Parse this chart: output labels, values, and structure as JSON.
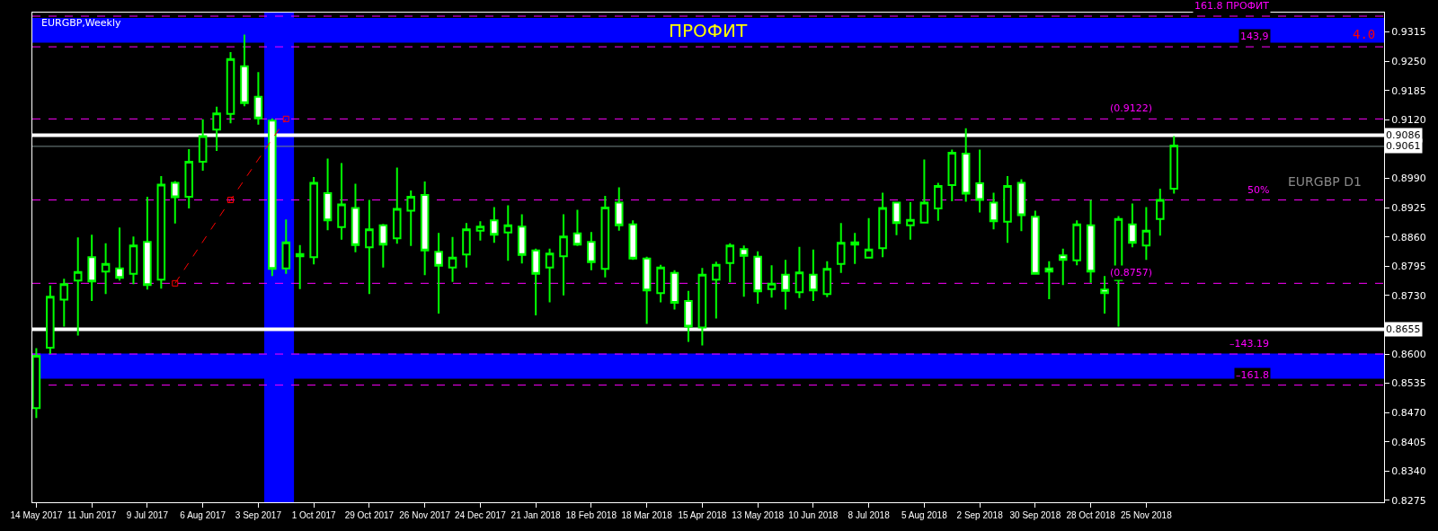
{
  "chart_data": {
    "type": "candlestick",
    "title": "EURGBP,Weekly",
    "x": [
      "2017-05-14",
      "2017-05-21",
      "2017-05-28",
      "2017-06-04",
      "2017-06-11",
      "2017-06-18",
      "2017-06-25",
      "2017-07-02",
      "2017-07-09",
      "2017-07-16",
      "2017-07-23",
      "2017-07-30",
      "2017-08-06",
      "2017-08-13",
      "2017-08-20",
      "2017-08-27",
      "2017-09-03",
      "2017-09-10",
      "2017-09-17",
      "2017-09-24",
      "2017-10-01",
      "2017-10-08",
      "2017-10-15",
      "2017-10-22",
      "2017-10-29",
      "2017-11-05",
      "2017-11-12",
      "2017-11-19",
      "2017-11-26",
      "2017-12-03",
      "2017-12-10",
      "2017-12-17",
      "2017-12-24",
      "2017-12-31",
      "2018-01-07",
      "2018-01-14",
      "2018-01-21",
      "2018-01-28",
      "2018-02-04",
      "2018-02-11",
      "2018-02-18",
      "2018-02-25",
      "2018-03-04",
      "2018-03-11",
      "2018-03-18",
      "2018-03-25",
      "2018-04-01",
      "2018-04-08",
      "2018-04-15",
      "2018-04-22",
      "2018-04-29",
      "2018-05-06",
      "2018-05-13",
      "2018-05-20",
      "2018-05-27",
      "2018-06-03",
      "2018-06-10",
      "2018-06-17",
      "2018-06-24",
      "2018-07-01",
      "2018-07-08",
      "2018-07-15",
      "2018-07-22",
      "2018-07-29",
      "2018-08-05",
      "2018-08-12",
      "2018-08-19",
      "2018-08-26",
      "2018-09-02",
      "2018-09-09",
      "2018-09-16",
      "2018-09-23",
      "2018-09-30",
      "2018-10-07",
      "2018-10-14",
      "2018-10-21",
      "2018-10-28",
      "2018-11-04",
      "2018-11-11",
      "2018-11-18",
      "2018-11-25",
      "2018-12-02",
      "2018-12-09"
    ],
    "series": [
      {
        "type": "candlestick",
        "color": "#00ff00",
        "ohlc": [
          [
            0.848,
            0.8613,
            0.8458,
            0.8596
          ],
          [
            0.8614,
            0.8752,
            0.86,
            0.8727
          ],
          [
            0.8721,
            0.8767,
            0.8661,
            0.8755
          ],
          [
            0.8763,
            0.8859,
            0.8641,
            0.8782
          ],
          [
            0.8815,
            0.8865,
            0.8718,
            0.8761
          ],
          [
            0.8783,
            0.8846,
            0.8733,
            0.88
          ],
          [
            0.879,
            0.8881,
            0.8763,
            0.8769
          ],
          [
            0.8778,
            0.8861,
            0.8755,
            0.8841
          ],
          [
            0.8849,
            0.8949,
            0.8743,
            0.8753
          ],
          [
            0.8765,
            0.8995,
            0.8745,
            0.8976
          ],
          [
            0.898,
            0.8984,
            0.889,
            0.8948
          ],
          [
            0.8949,
            0.9055,
            0.8923,
            0.9027
          ],
          [
            0.9027,
            0.9121,
            0.9007,
            0.9084
          ],
          [
            0.9098,
            0.9149,
            0.9051,
            0.9134
          ],
          [
            0.9133,
            0.927,
            0.9112,
            0.9255
          ],
          [
            0.9239,
            0.9309,
            0.915,
            0.9157
          ],
          [
            0.9171,
            0.9226,
            0.9109,
            0.9123
          ],
          [
            0.9118,
            0.9123,
            0.8773,
            0.8789
          ],
          [
            0.879,
            0.8899,
            0.8778,
            0.8848
          ],
          [
            0.8822,
            0.8842,
            0.8744,
            0.8817
          ],
          [
            0.8815,
            0.8993,
            0.8799,
            0.898
          ],
          [
            0.8957,
            0.9034,
            0.8875,
            0.8897
          ],
          [
            0.8882,
            0.9024,
            0.8854,
            0.8932
          ],
          [
            0.8924,
            0.8978,
            0.8826,
            0.8842
          ],
          [
            0.8837,
            0.8942,
            0.8733,
            0.8877
          ],
          [
            0.8886,
            0.8889,
            0.8792,
            0.8843
          ],
          [
            0.8857,
            0.9014,
            0.8845,
            0.8922
          ],
          [
            0.8918,
            0.8963,
            0.884,
            0.8949
          ],
          [
            0.8953,
            0.8983,
            0.8775,
            0.883
          ],
          [
            0.8827,
            0.8869,
            0.869,
            0.8796
          ],
          [
            0.8792,
            0.886,
            0.876,
            0.8814
          ],
          [
            0.8821,
            0.8891,
            0.8792,
            0.8877
          ],
          [
            0.8874,
            0.8895,
            0.8852,
            0.8883
          ],
          [
            0.8897,
            0.8926,
            0.8847,
            0.8865
          ],
          [
            0.887,
            0.893,
            0.8807,
            0.8886
          ],
          [
            0.8883,
            0.891,
            0.8801,
            0.882
          ],
          [
            0.883,
            0.8834,
            0.8686,
            0.8778
          ],
          [
            0.8792,
            0.8834,
            0.8715,
            0.8823
          ],
          [
            0.8817,
            0.891,
            0.873,
            0.8861
          ],
          [
            0.8868,
            0.892,
            0.884,
            0.8843
          ],
          [
            0.8849,
            0.8871,
            0.8786,
            0.8804
          ],
          [
            0.8789,
            0.8951,
            0.877,
            0.8925
          ],
          [
            0.8936,
            0.897,
            0.8874,
            0.8886
          ],
          [
            0.8888,
            0.8897,
            0.8809,
            0.8812
          ],
          [
            0.8812,
            0.8816,
            0.8667,
            0.8741
          ],
          [
            0.8735,
            0.8798,
            0.8715,
            0.8792
          ],
          [
            0.878,
            0.8786,
            0.8699,
            0.8714
          ],
          [
            0.8718,
            0.874,
            0.8627,
            0.8661
          ],
          [
            0.8659,
            0.8791,
            0.8619,
            0.8776
          ],
          [
            0.8765,
            0.8805,
            0.8679,
            0.8798
          ],
          [
            0.8802,
            0.8846,
            0.8759,
            0.8841
          ],
          [
            0.8833,
            0.8841,
            0.8727,
            0.8818
          ],
          [
            0.8816,
            0.8828,
            0.8712,
            0.8739
          ],
          [
            0.8744,
            0.8797,
            0.8725,
            0.8756
          ],
          [
            0.8776,
            0.8809,
            0.8699,
            0.874
          ],
          [
            0.8737,
            0.8838,
            0.8724,
            0.8781
          ],
          [
            0.8776,
            0.8832,
            0.8718,
            0.8741
          ],
          [
            0.8733,
            0.8806,
            0.8726,
            0.8789
          ],
          [
            0.88,
            0.8891,
            0.878,
            0.8847
          ],
          [
            0.8848,
            0.8869,
            0.88,
            0.8843
          ],
          [
            0.8814,
            0.8902,
            0.8812,
            0.8832
          ],
          [
            0.8835,
            0.8958,
            0.8815,
            0.8924
          ],
          [
            0.8936,
            0.8937,
            0.8864,
            0.8891
          ],
          [
            0.8886,
            0.8937,
            0.8854,
            0.8898
          ],
          [
            0.8892,
            0.9032,
            0.8891,
            0.8936
          ],
          [
            0.8923,
            0.898,
            0.8896,
            0.8973
          ],
          [
            0.8975,
            0.9054,
            0.8939,
            0.9047
          ],
          [
            0.9045,
            0.9101,
            0.8938,
            0.8956
          ],
          [
            0.8979,
            0.9054,
            0.8914,
            0.8942
          ],
          [
            0.8936,
            0.8958,
            0.8877,
            0.8895
          ],
          [
            0.8894,
            0.8995,
            0.8847,
            0.8973
          ],
          [
            0.898,
            0.8988,
            0.8873,
            0.8908
          ],
          [
            0.8905,
            0.8918,
            0.8776,
            0.8778
          ],
          [
            0.879,
            0.8806,
            0.8722,
            0.8783
          ],
          [
            0.8819,
            0.8834,
            0.8753,
            0.8809
          ],
          [
            0.8808,
            0.8897,
            0.8797,
            0.8888
          ],
          [
            0.8886,
            0.8942,
            0.8758,
            0.8783
          ],
          [
            0.8743,
            0.8773,
            0.869,
            0.8735
          ],
          [
            0.8764,
            0.8906,
            0.8661,
            0.89
          ],
          [
            0.8888,
            0.8934,
            0.8837,
            0.8847
          ],
          [
            0.8841,
            0.8926,
            0.8809,
            0.8874
          ],
          [
            0.89,
            0.8967,
            0.8863,
            0.8942
          ],
          [
            0.8967,
            0.9084,
            0.8956,
            0.9063
          ]
        ]
      },
      {
        "type": "line",
        "color": "#ff0000",
        "line_style": "dashed",
        "marker": "square",
        "x": [
          "2017-07-23",
          "2017-08-20",
          "2017-09-17"
        ],
        "values": [
          0.8757,
          0.8942,
          0.9122
        ]
      }
    ],
    "xlim": [
      "2017-05-12",
      "2019-03-25"
    ],
    "xticks": [
      {
        "value": "2017-05-14",
        "label": "14 May 2017"
      },
      {
        "value": "2017-06-11",
        "label": "11 Jun 2017"
      },
      {
        "value": "2017-07-09",
        "label": "9 Jul 2017"
      },
      {
        "value": "2017-08-06",
        "label": "6 Aug 2017"
      },
      {
        "value": "2017-09-03",
        "label": "3 Sep 2017"
      },
      {
        "value": "2017-10-01",
        "label": "1 Oct 2017"
      },
      {
        "value": "2017-10-29",
        "label": "29 Oct 2017"
      },
      {
        "value": "2017-11-26",
        "label": "26 Nov 2017"
      },
      {
        "value": "2017-12-24",
        "label": "24 Dec 2017"
      },
      {
        "value": "2018-01-21",
        "label": "21 Jan 2018"
      },
      {
        "value": "2018-02-18",
        "label": "18 Feb 2018"
      },
      {
        "value": "2018-03-18",
        "label": "18 Mar 2018"
      },
      {
        "value": "2018-04-15",
        "label": "15 Apr 2018"
      },
      {
        "value": "2018-05-13",
        "label": "13 May 2018"
      },
      {
        "value": "2018-06-10",
        "label": "10 Jun 2018"
      },
      {
        "value": "2018-07-08",
        "label": "8 Jul 2018"
      },
      {
        "value": "2018-08-05",
        "label": "5 Aug 2018"
      },
      {
        "value": "2018-09-02",
        "label": "2 Sep 2018"
      },
      {
        "value": "2018-09-30",
        "label": "30 Sep 2018"
      },
      {
        "value": "2018-10-28",
        "label": "28 Oct 2018"
      },
      {
        "value": "2018-11-25",
        "label": "25 Nov 2018"
      }
    ],
    "ylim": [
      0.8271,
      0.9358
    ],
    "yticks": [
      0.9315,
      {
        "value": 0.925,
        "label": "0.9250"
      },
      0.9185,
      {
        "value": 0.912,
        "label": "0.9120"
      },
      {
        "value": 0.899,
        "label": "0.8990"
      },
      0.8925,
      {
        "value": 0.886,
        "label": "0.8860"
      },
      0.8795,
      {
        "value": 0.873,
        "label": "0.8730"
      },
      {
        "value": 0.86,
        "label": "0.8600"
      },
      0.8535,
      {
        "value": 0.847,
        "label": "0.8470"
      },
      0.8405,
      {
        "value": 0.834,
        "label": "0.8340"
      },
      0.8275
    ],
    "bands": [
      {
        "axis": "y",
        "from": 0.9291,
        "to": 0.9346,
        "label": "ПРОФИТ",
        "color": "#0000ff"
      },
      {
        "axis": "y",
        "from": 0.8545,
        "to": 0.8601,
        "color": "#0000ff"
      },
      {
        "axis": "x",
        "from": "2017-09-06",
        "to": "2017-09-21",
        "color": "#0000ff"
      }
    ],
    "ref_lines": [
      {
        "axis": "y",
        "value": 0.935,
        "color": "#ff00ff",
        "line_style": "dashed"
      },
      {
        "axis": "y",
        "value": 0.9282,
        "color": "#ff00ff",
        "line_style": "dashed"
      },
      {
        "axis": "y",
        "value": 0.9122,
        "label": "(0.9122)",
        "color": "#ff00ff",
        "line_style": "dashed"
      },
      {
        "axis": "y",
        "value": 0.8942,
        "color": "#ff00ff",
        "line_style": "dashed"
      },
      {
        "axis": "y",
        "value": 0.8757,
        "label": "(0.8757)",
        "color": "#ff00ff",
        "line_style": "dashed"
      },
      {
        "axis": "y",
        "value": 0.86,
        "color": "#ff00ff",
        "line_style": "dashed"
      },
      {
        "axis": "y",
        "value": 0.8531,
        "color": "#ff00ff",
        "line_style": "dashed"
      },
      {
        "axis": "y",
        "value": 0.9086,
        "label": "0.9086",
        "color": "#ffffff",
        "line_style": "solid"
      },
      {
        "axis": "y",
        "value": 0.9061,
        "label": "0.9061",
        "color": "#778888",
        "line_style": "solid"
      },
      {
        "axis": "y",
        "value": 0.8655,
        "label": "0.8655",
        "color": "#ffffff",
        "line_style": "solid"
      }
    ],
    "annotations": [
      "EURGBP D1",
      "4.0",
      {
        "text": "161.8 ПРОФИТ",
        "x": "2019-01-27",
        "y": 0.935
      },
      {
        "text": "143,9",
        "x": "2019-01-27",
        "y": 0.9282
      },
      {
        "text": "50%",
        "x": "2019-01-27",
        "y": 0.8942
      },
      {
        "text": "–143.19",
        "x": "2019-01-27",
        "y": 0.86
      },
      {
        "text": "–161.8",
        "x": "2019-01-27",
        "y": 0.8531
      }
    ]
  }
}
